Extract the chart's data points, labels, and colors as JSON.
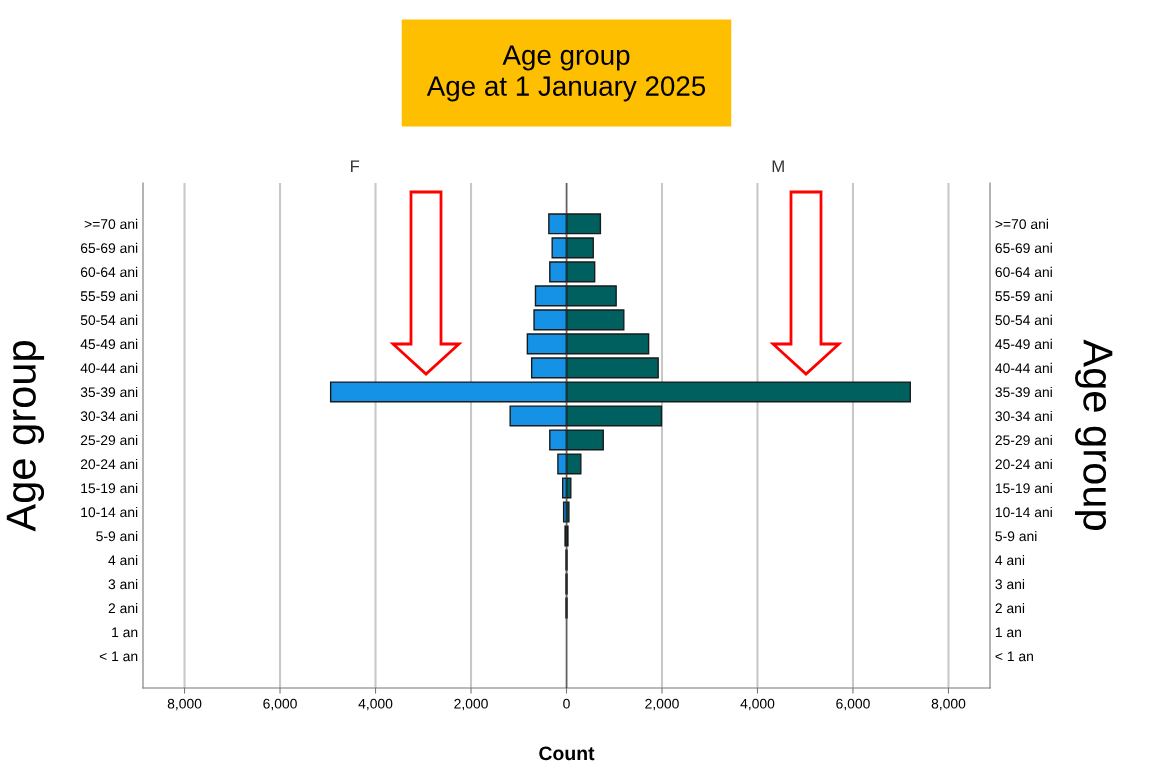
{
  "chart_data": [
    {
      "type": "bar",
      "orientation": "horizontal",
      "title": "Age group\nAge at 1 January 2025",
      "subtitle": "F",
      "xlabel": "Count",
      "ylabel": "Age group",
      "categories": [
        ">=70 ani",
        "65-69 ani",
        "60-64 ani",
        "55-59 ani",
        "50-54 ani",
        "45-49 ani",
        "40-44 ani",
        "35-39 ani",
        "30-34 ani",
        "25-29 ani",
        "20-24 ani",
        "15-19 ani",
        "10-14 ani",
        "5-9 ani",
        "4 ani",
        "3 ani",
        "2 ani",
        "1 an",
        "< 1 an"
      ],
      "values": [
        370,
        300,
        350,
        650,
        680,
        820,
        730,
        4940,
        1180,
        350,
        180,
        80,
        60,
        30,
        10,
        10,
        10,
        0,
        0
      ],
      "color": "#1591e6",
      "xlim": [
        8870,
        0
      ],
      "xticks": [
        {
          "value": 8000,
          "label": "8,000"
        },
        {
          "value": 6000,
          "label": "6,000"
        },
        {
          "value": 4000,
          "label": "4,000"
        },
        {
          "value": 2000,
          "label": "2,000"
        }
      ],
      "grid": "x"
    },
    {
      "type": "bar",
      "orientation": "horizontal",
      "subtitle": "M",
      "ylabel": "Age group",
      "categories": [
        ">=70 ani",
        "65-69 ani",
        "60-64 ani",
        "55-59 ani",
        "50-54 ani",
        "45-49 ani",
        "40-44 ani",
        "35-39 ani",
        "30-34 ani",
        "25-29 ani",
        "20-24 ani",
        "15-19 ani",
        "10-14 ani",
        "5-9 ani",
        "4 ani",
        "3 ani",
        "2 ani",
        "1 an",
        "< 1 an"
      ],
      "values": [
        710,
        560,
        590,
        1040,
        1200,
        1720,
        1920,
        7200,
        1990,
        770,
        300,
        90,
        50,
        30,
        10,
        10,
        10,
        0,
        0
      ],
      "color": "#005f5f",
      "xlim": [
        0,
        8870
      ],
      "xticks": [
        0,
        {
          "value": 2000,
          "label": "2,000"
        },
        {
          "value": 4000,
          "label": "4,000"
        },
        {
          "value": 6000,
          "label": "6,000"
        },
        {
          "value": 8000,
          "label": "8,000"
        }
      ],
      "grid": "x"
    }
  ]
}
